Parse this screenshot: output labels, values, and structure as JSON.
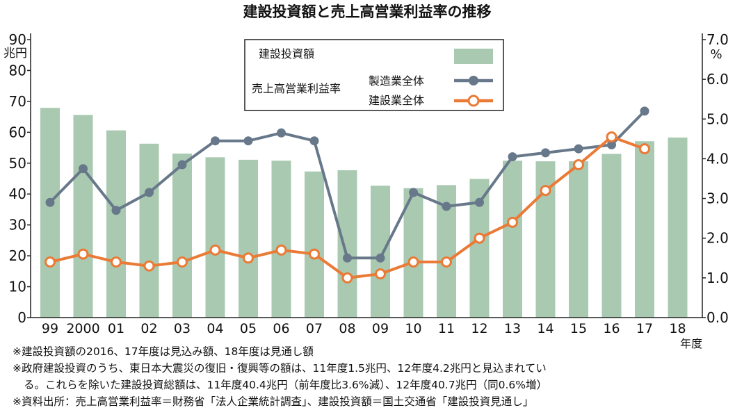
{
  "chart_data": {
    "type": "bar+line",
    "title": "建設投資額と売上高営業利益率の推移",
    "categories": [
      "99",
      "2000",
      "01",
      "02",
      "03",
      "04",
      "05",
      "06",
      "07",
      "08",
      "09",
      "10",
      "11",
      "12",
      "13",
      "14",
      "15",
      "16",
      "17",
      "18"
    ],
    "x_unit": "年度",
    "y_left": {
      "unit": "兆円",
      "range": [
        0,
        90
      ],
      "ticks": [
        "0",
        "10",
        "20",
        "30",
        "40",
        "50",
        "60",
        "70",
        "80",
        "90"
      ]
    },
    "y_right": {
      "unit": "%",
      "range": [
        0.0,
        7.0
      ],
      "ticks": [
        "0.0",
        "1.0",
        "2.0",
        "3.0",
        "4.0",
        "5.0",
        "6.0",
        "7.0"
      ]
    },
    "grid": false,
    "legend": {
      "placement": "top-center",
      "bar_label": "建設投資額",
      "line_group_label": "売上高営業利益率"
    },
    "series": [
      {
        "name": "建設投資額",
        "kind": "bar",
        "axis": "left",
        "color": "#a9c9b1",
        "values": [
          67.9,
          65.6,
          60.6,
          56.3,
          53.1,
          51.9,
          51.1,
          50.8,
          47.3,
          47.7,
          42.7,
          41.9,
          42.9,
          44.9,
          50.8,
          50.6,
          50.6,
          53.0,
          57.1,
          58.3
        ]
      },
      {
        "name": "製造業全体",
        "kind": "line",
        "axis": "right",
        "color": "#67788a",
        "marker": "filled",
        "values": [
          2.9,
          3.75,
          2.7,
          3.15,
          3.85,
          4.45,
          4.45,
          4.65,
          4.45,
          1.5,
          1.5,
          3.15,
          2.8,
          2.9,
          4.05,
          4.15,
          4.25,
          4.35,
          5.2,
          null
        ]
      },
      {
        "name": "建設業全体",
        "kind": "line",
        "axis": "right",
        "color": "#ea7a35",
        "marker": "hollow",
        "values": [
          1.4,
          1.6,
          1.4,
          1.3,
          1.4,
          1.7,
          1.5,
          1.7,
          1.6,
          1.0,
          1.1,
          1.4,
          1.4,
          2.0,
          2.4,
          3.2,
          3.85,
          4.55,
          4.25,
          null
        ]
      }
    ]
  },
  "notes": [
    "※建設投資額の2016、17年度は見込み額、18年度は見通し額",
    "※政府建設投資のうち、東日本大震災の復旧・復興等の額は、11年度1.5兆円、12年度4.2兆円と見込まれてい",
    "る。これらを除いた建設投資総額は、11年度40.4兆円（前年度比3.6%減）、12年度40.7兆円（同0.6%増）",
    "※資料出所：売上高営業利益率＝財務省「法人企業統計調査」、建設投資額＝国土交通省「建設投資見通し」"
  ]
}
